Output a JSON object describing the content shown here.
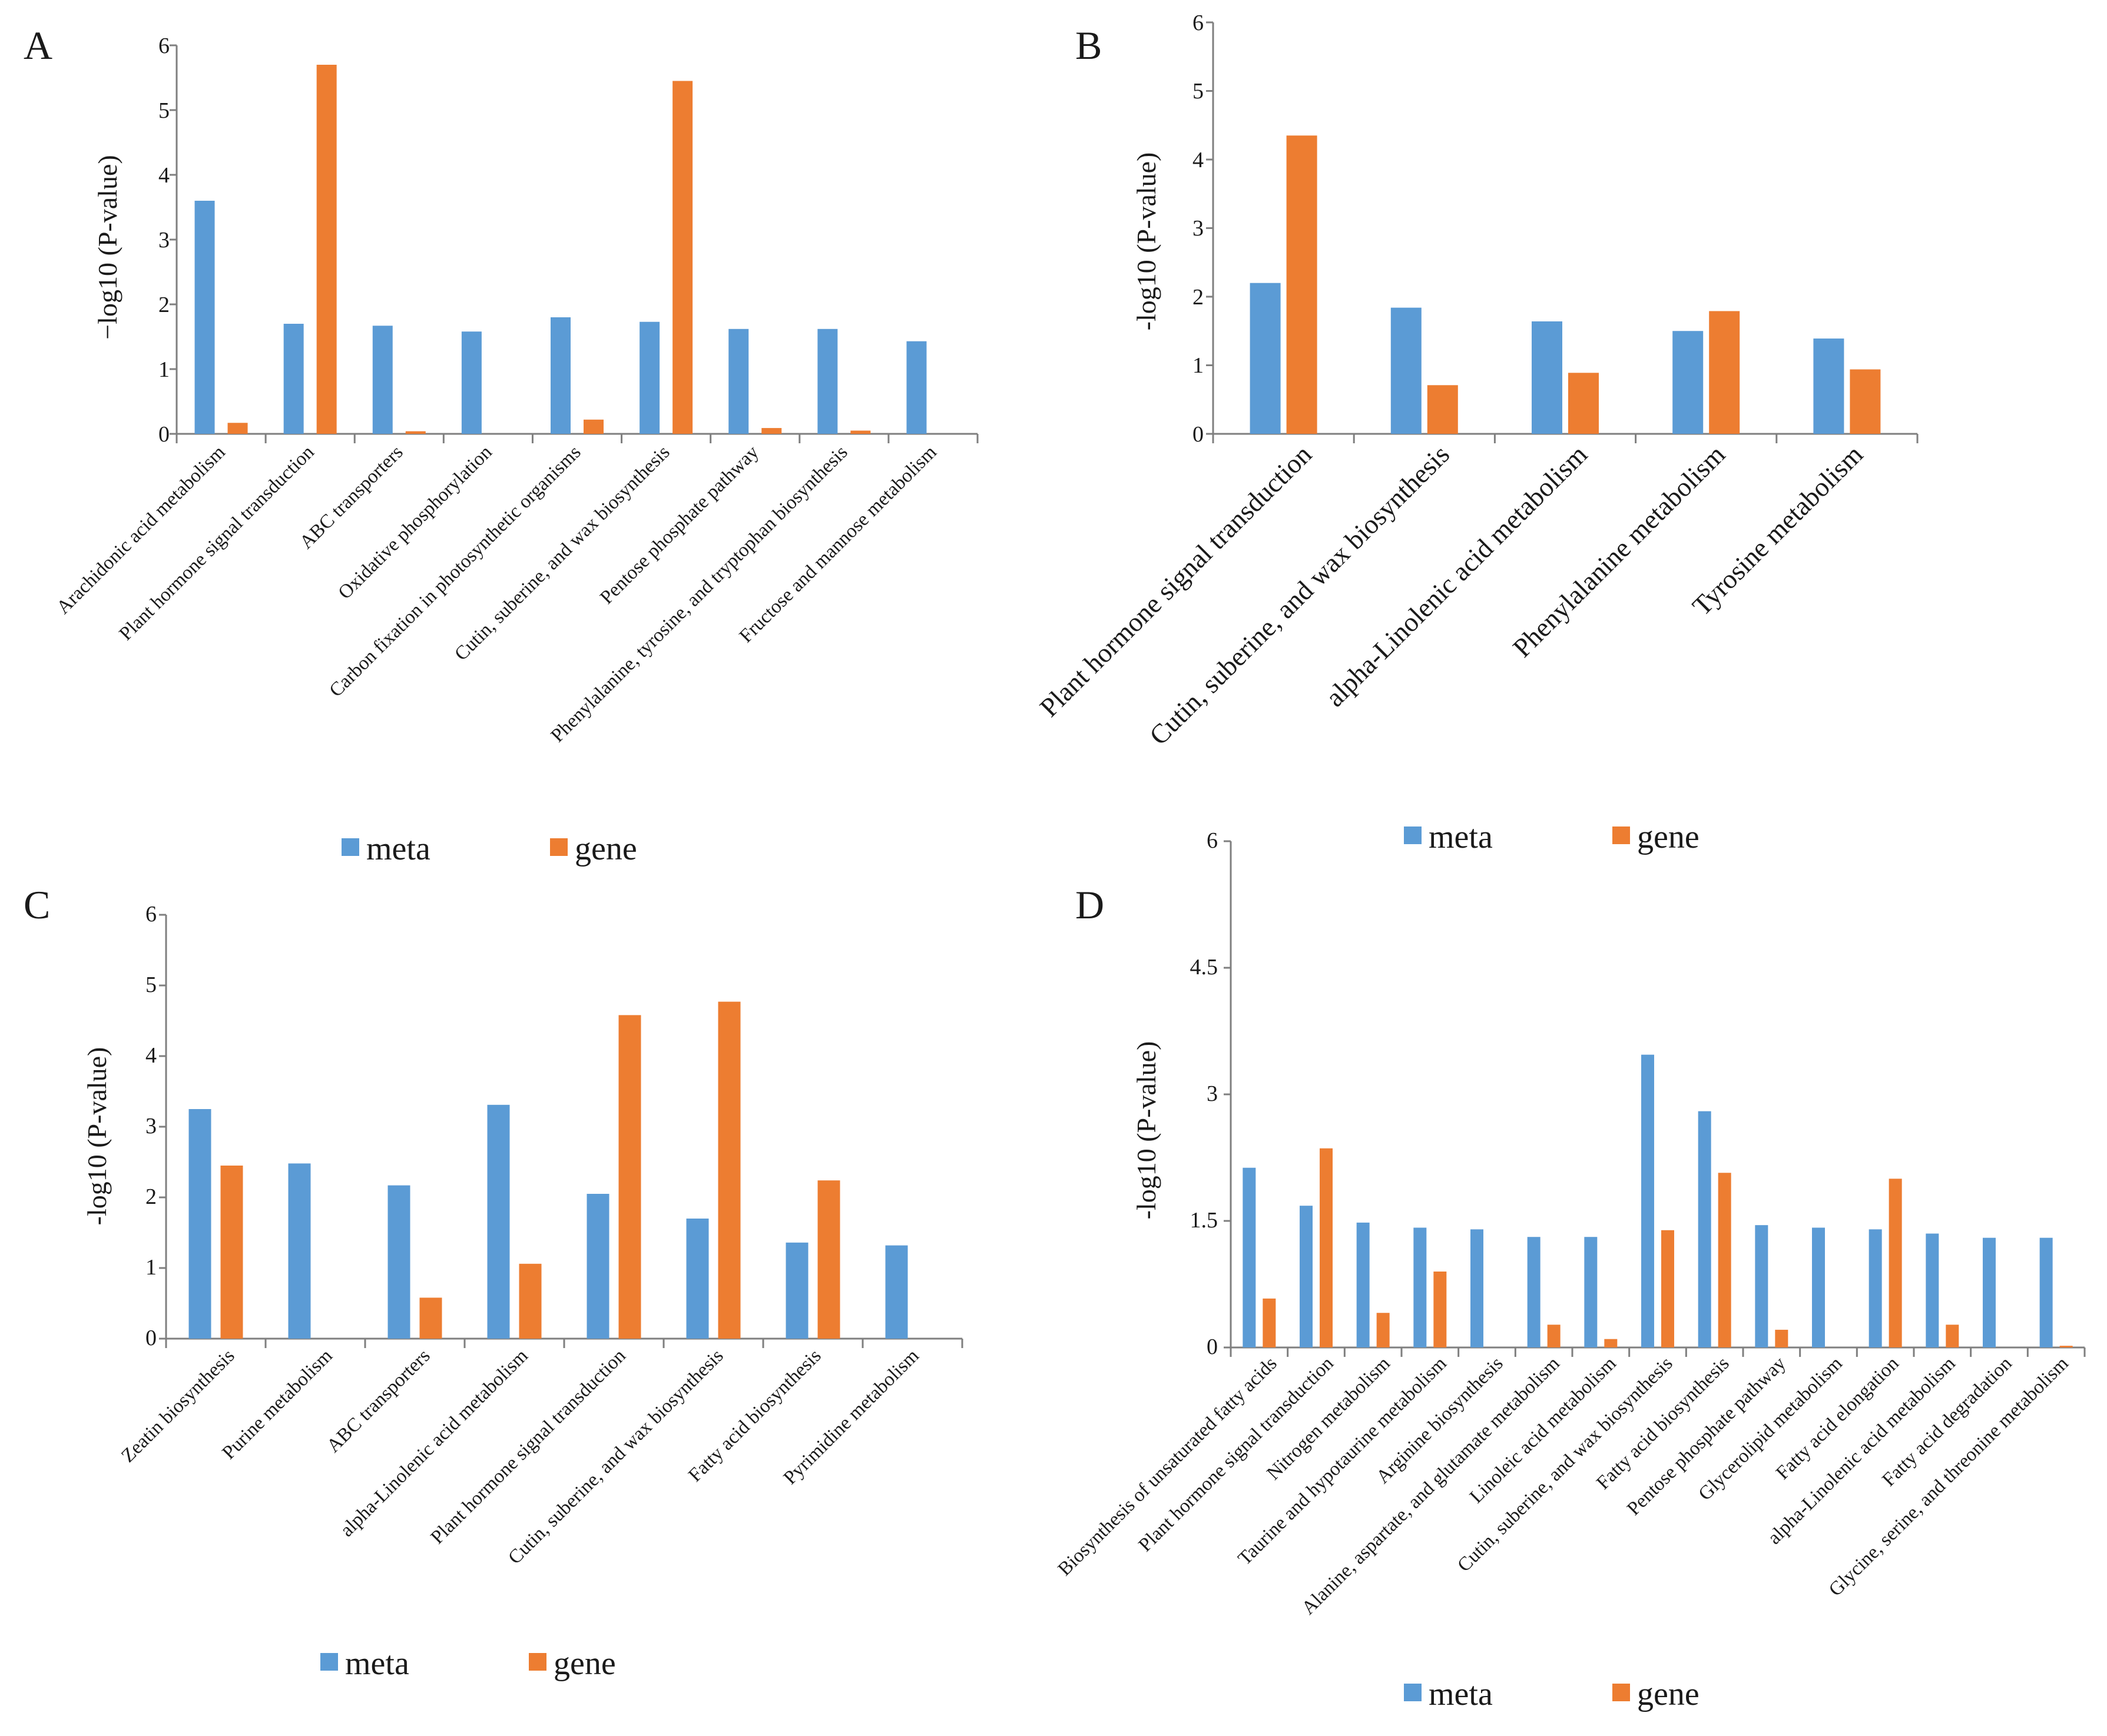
{
  "figure": {
    "colors": {
      "meta": "#5B9BD5",
      "gene": "#ED7D31",
      "axis": "#7f7f7f"
    },
    "series_names": [
      "meta",
      "gene"
    ]
  },
  "chart_data": [
    {
      "panel": "A",
      "type": "bar",
      "title": "",
      "xlabel": "",
      "ylabel": "−log10 (P-value)",
      "ylim": [
        0,
        6
      ],
      "yticks": [
        "0",
        "1",
        "2",
        "3",
        "4",
        "5",
        "6"
      ],
      "grid": false,
      "legend_position": "bottom",
      "categories": [
        "Arachidonic acid metabolism",
        "Plant hormone signal transduction",
        "ABC transporters",
        "Oxidative phosphorylation",
        "Carbon fixation in photosynthetic organisms",
        "Cutin, suberine, and wax biosynthesis",
        "Pentose phosphate pathway",
        "Phenylalanine, tyrosine, and tryptophan biosynthesis",
        "Fructose and mannose metabolism"
      ],
      "series": [
        {
          "name": "meta",
          "values": [
            3.6,
            1.7,
            1.67,
            1.58,
            1.8,
            1.73,
            1.62,
            1.62,
            1.43
          ]
        },
        {
          "name": "gene",
          "values": [
            0.17,
            5.7,
            0.04,
            0,
            0.22,
            5.45,
            0.09,
            0.05,
            0
          ]
        }
      ]
    },
    {
      "panel": "B",
      "type": "bar",
      "title": "",
      "xlabel": "",
      "ylabel": "-log10 (P-value)",
      "ylim": [
        0,
        6
      ],
      "yticks": [
        "0",
        "1",
        "2",
        "3",
        "4",
        "5",
        "6"
      ],
      "grid": false,
      "legend_position": "bottom",
      "categories": [
        "Plant hormone signal transduction",
        "Cutin, suberine, and wax biosynthesis",
        "alpha-Linolenic acid metabolism",
        "Phenylalanine metabolism",
        "Tyrosine metabolism"
      ],
      "series": [
        {
          "name": "meta",
          "values": [
            2.2,
            1.84,
            1.64,
            1.5,
            1.39
          ]
        },
        {
          "name": "gene",
          "values": [
            4.35,
            0.71,
            0.89,
            1.79,
            0.94
          ]
        }
      ]
    },
    {
      "panel": "C",
      "type": "bar",
      "title": "",
      "xlabel": "",
      "ylabel": "-log10 (P-value)",
      "ylim": [
        0,
        6
      ],
      "yticks": [
        "0",
        "1",
        "2",
        "3",
        "4",
        "5",
        "6"
      ],
      "grid": false,
      "legend_position": "bottom",
      "categories": [
        "Zeatin biosynthesis",
        "Purine metabolism",
        "ABC transporters",
        "alpha-Linolenic acid metabolism",
        "Plant hormone signal transduction",
        "Cutin, suberine, and wax biosynthesis",
        "Fatty acid biosynthesis",
        "Pyrimidine metabolism"
      ],
      "series": [
        {
          "name": "meta",
          "values": [
            3.25,
            2.48,
            2.17,
            3.31,
            2.05,
            1.7,
            1.36,
            1.32
          ]
        },
        {
          "name": "gene",
          "values": [
            2.45,
            0,
            0.58,
            1.06,
            4.58,
            4.77,
            2.24,
            0
          ]
        }
      ]
    },
    {
      "panel": "D",
      "type": "bar",
      "title": "",
      "xlabel": "",
      "ylabel": "-log10 (P-value)",
      "ylim": [
        0,
        6
      ],
      "yticks": [
        "0",
        "1.5",
        "3",
        "4.5",
        "6"
      ],
      "grid": false,
      "legend_position": "bottom",
      "categories": [
        "Biosynthesis of unsaturated fatty acids",
        "Plant hormone signal transduction",
        "Nitrogen metabolism",
        "Taurine and hypotaurine metabolism",
        "Arginine biosynthesis",
        "Alanine, aspartate, and glutamate metabolism",
        "Linoleic acid metabolism",
        "Cutin, suberine, and wax biosynthesis",
        "Fatty acid biosynthesis",
        "Pentose phosphate pathway",
        "Glycerolipid metabolism",
        "Fatty acid elongation",
        "alpha-Linolenic acid metabolism",
        "Fatty acid degradation",
        "Glycine, serine, and threonine metabolism"
      ],
      "series": [
        {
          "name": "meta",
          "values": [
            2.13,
            1.68,
            1.48,
            1.42,
            1.4,
            1.31,
            1.31,
            3.47,
            2.8,
            1.45,
            1.42,
            1.4,
            1.35,
            1.3,
            1.3
          ]
        },
        {
          "name": "gene",
          "values": [
            0.58,
            2.36,
            0.41,
            0.9,
            0,
            0.27,
            0.1,
            1.39,
            2.07,
            0.21,
            0,
            2.0,
            0.27,
            0,
            0.02
          ]
        }
      ]
    }
  ]
}
